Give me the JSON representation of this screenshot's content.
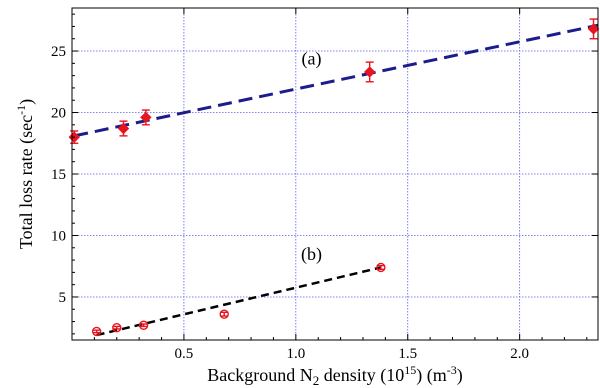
{
  "chart_data": {
    "type": "scatter",
    "xlabel": {
      "main": "Background N",
      "sub": "2",
      "rest": " density (10",
      "sup1": "15",
      "mid": ") (m",
      "sup2": "-3",
      "end": ")"
    },
    "ylabel": {
      "main": "Total loss rate (sec",
      "sup": "-1",
      "end": ")"
    },
    "xlim": [
      0,
      2.35
    ],
    "ylim": [
      1.5,
      28.5
    ],
    "xticks": [
      0.5,
      1.0,
      1.5,
      2.0
    ],
    "xtick_labels": [
      "0.5",
      "1.0",
      "1.5",
      "2.0"
    ],
    "yticks": [
      5,
      10,
      15,
      20,
      25
    ],
    "ytick_labels": [
      "5",
      "10",
      "15",
      "20",
      "25"
    ],
    "grid": true,
    "colors": {
      "points": "#e8141e",
      "fit_a": "#1c1c8c",
      "fit_b": "#000000",
      "grid": "#5a5af0"
    },
    "series": [
      {
        "label": "(a)",
        "marker": "filled-diamond",
        "x": [
          0.01,
          0.23,
          0.33,
          1.33,
          2.33
        ],
        "y": [
          18.0,
          18.7,
          19.6,
          23.3,
          26.8
        ],
        "err": [
          0.5,
          0.6,
          0.6,
          0.8,
          0.8
        ],
        "fit": {
          "x": [
            0.01,
            2.35
          ],
          "y": [
            18.1,
            27.1
          ]
        },
        "label_pos": {
          "x": 1.07,
          "y": 23.9
        }
      },
      {
        "label": "(b)",
        "marker": "open-circle",
        "x": [
          0.11,
          0.2,
          0.32,
          0.68,
          1.38
        ],
        "y": [
          2.2,
          2.5,
          2.7,
          3.6,
          7.4
        ],
        "err": [
          0.1,
          0.1,
          0.1,
          0.15,
          0.15
        ],
        "fit": {
          "x": [
            0.11,
            1.38
          ],
          "y": [
            1.9,
            7.4
          ]
        },
        "label_pos": {
          "x": 1.07,
          "y": 8.0
        }
      }
    ]
  }
}
